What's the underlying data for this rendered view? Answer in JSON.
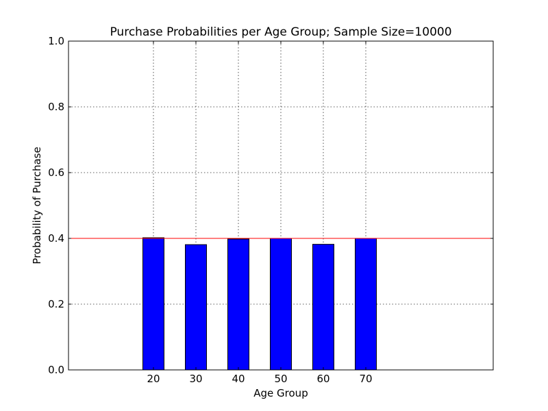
{
  "chart_data": {
    "type": "bar",
    "title": "Purchase Probabilities per Age Group; Sample Size=10000",
    "xlabel": "Age Group",
    "ylabel": "Probability of Purchase",
    "categories": [
      "20",
      "30",
      "40",
      "50",
      "60",
      "70"
    ],
    "x": [
      20,
      30,
      40,
      50,
      60,
      70
    ],
    "values": [
      0.402,
      0.381,
      0.398,
      0.4,
      0.382,
      0.4
    ],
    "xlim": [
      0,
      100
    ],
    "ylim": [
      0.0,
      1.0
    ],
    "yticks": [
      0.0,
      0.2,
      0.4,
      0.6,
      0.8,
      1.0
    ],
    "ytick_labels": [
      "0.0",
      "0.2",
      "0.4",
      "0.6",
      "0.8",
      "1.0"
    ],
    "bar_width": 5,
    "reference_line": 0.4,
    "grid": true,
    "colors": {
      "bar": "#0000ff",
      "reference_line": "#ff0000"
    }
  }
}
